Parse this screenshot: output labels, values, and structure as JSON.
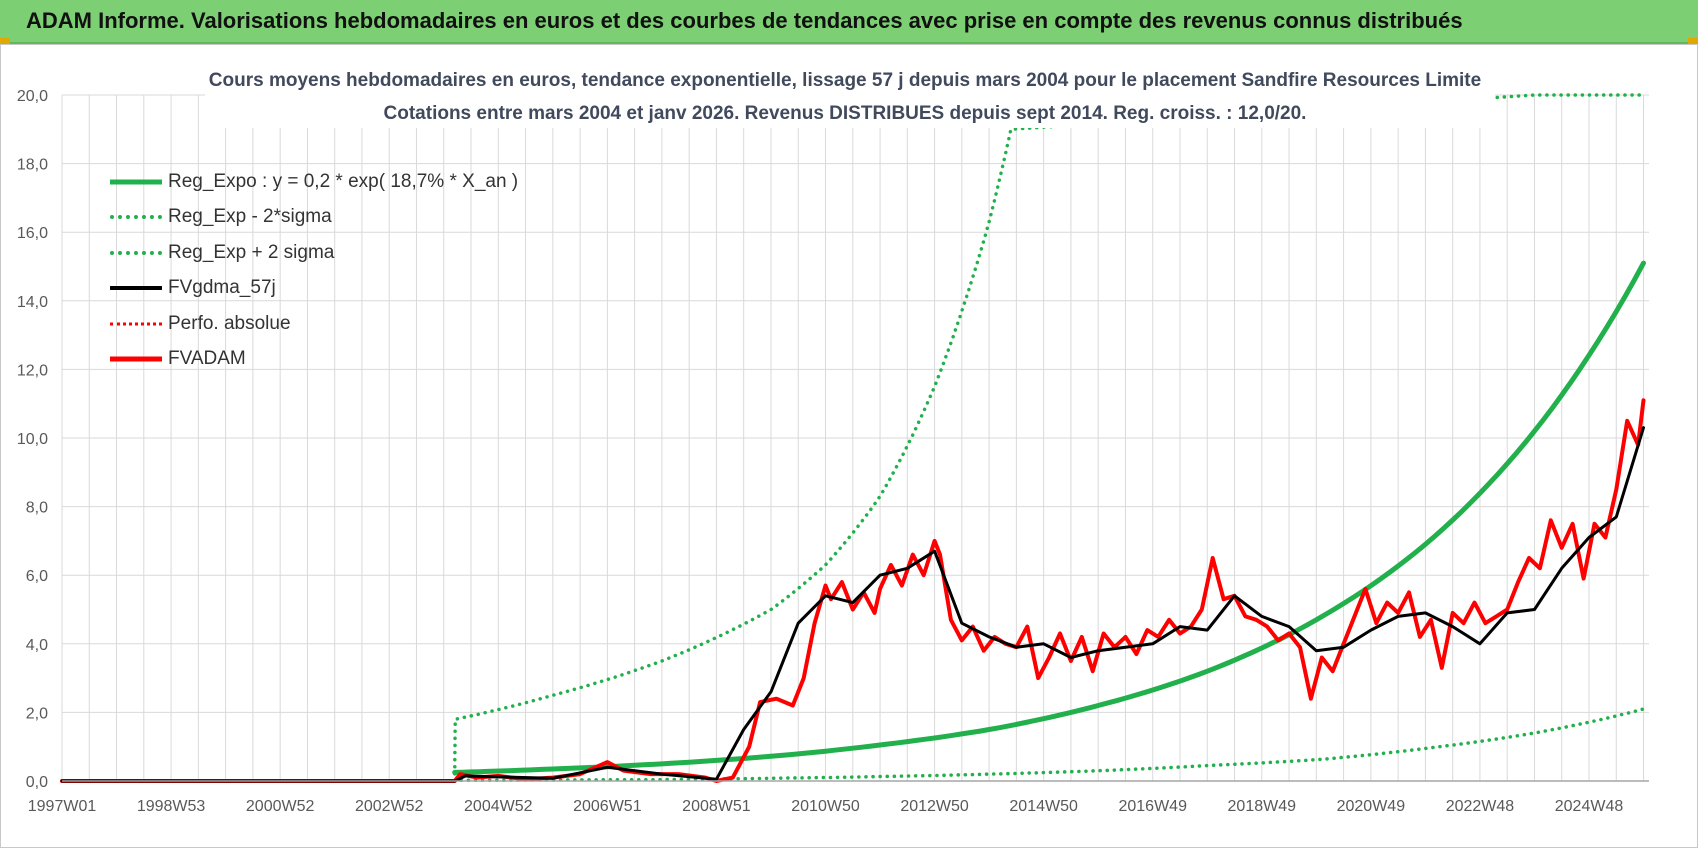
{
  "banner": {
    "title": "ADAM Informe. Valorisations hebdomadaires en euros et des courbes de tendances avec prise en compte des revenus connus distribués"
  },
  "colors": {
    "green": "#22b04c",
    "black": "#000000",
    "red": "#ff0000",
    "grid": "#d9d9d9",
    "banner": "#7ccf72"
  },
  "chart_data": {
    "type": "line",
    "title": "Cours moyens hebdomadaires en euros, tendance exponentielle, lissage 57 j depuis mars 2004 pour le placement Sandfire Resources Limite",
    "subtitle": "Cotations entre mars 2004 et janv 2026. Revenus DISTRIBUES depuis sept 2014. Reg. croiss. : 12,0/20.",
    "xlabel": "",
    "ylabel": "",
    "ylim": [
      0,
      20
    ],
    "xlim": [
      1997.0,
      2026.1
    ],
    "y_ticks": [
      "0,0",
      "2,0",
      "4,0",
      "6,0",
      "8,0",
      "10,0",
      "12,0",
      "14,0",
      "16,0",
      "18,0",
      "20,0"
    ],
    "x_ticks": [
      {
        "label": "1997W01",
        "x": 1997.0
      },
      {
        "label": "1998W53",
        "x": 1999.0
      },
      {
        "label": "2000W52",
        "x": 2001.0
      },
      {
        "label": "2002W52",
        "x": 2003.0
      },
      {
        "label": "2004W52",
        "x": 2005.0
      },
      {
        "label": "2006W51",
        "x": 2007.0
      },
      {
        "label": "2008W51",
        "x": 2009.0
      },
      {
        "label": "2010W50",
        "x": 2011.0
      },
      {
        "label": "2012W50",
        "x": 2013.0
      },
      {
        "label": "2014W50",
        "x": 2015.0
      },
      {
        "label": "2016W49",
        "x": 2017.0
      },
      {
        "label": "2018W49",
        "x": 2019.0
      },
      {
        "label": "2020W49",
        "x": 2021.0
      },
      {
        "label": "2022W48",
        "x": 2023.0
      },
      {
        "label": "2024W48",
        "x": 2025.0
      }
    ],
    "legend": [
      {
        "name": "Reg_Expo : y = 0,2 * exp( 18,7% *  X_an )",
        "color": "#22b04c",
        "style": "solid"
      },
      {
        "name": "Reg_Exp - 2*sigma",
        "color": "#22b04c",
        "style": "dotted"
      },
      {
        "name": "Reg_Exp + 2 sigma",
        "color": "#22b04c",
        "style": "dotted"
      },
      {
        "name": "FVgdma_57j",
        "color": "#000000",
        "style": "solid"
      },
      {
        "name": "Perfo. absolue",
        "color": "#ff0000",
        "style": "dotted"
      },
      {
        "name": "FVADAM",
        "color": "#ff0000",
        "style": "solid"
      }
    ],
    "series": [
      {
        "name": "Reg_Expo",
        "x": [
          2004.2,
          2006.0,
          2008.0,
          2010.0,
          2012.0,
          2014.0,
          2016.0,
          2018.0,
          2020.0,
          2022.0,
          2024.0,
          2026.0
        ],
        "values": [
          0.25,
          0.35,
          0.5,
          0.72,
          1.05,
          1.5,
          2.2,
          3.2,
          4.7,
          6.9,
          10.2,
          15.1
        ]
      },
      {
        "name": "Reg_Exp - 2*sigma",
        "x": [
          2004.2,
          2004.21,
          2006.0,
          2008.0,
          2010.0,
          2012.0,
          2014.0,
          2016.0,
          2018.0,
          2020.0,
          2022.0,
          2024.0,
          2026.0
        ],
        "values": [
          0.0,
          0.02,
          0.03,
          0.04,
          0.08,
          0.13,
          0.2,
          0.3,
          0.45,
          0.62,
          0.95,
          1.4,
          2.1
        ]
      },
      {
        "name": "Reg_Exp + 2 sigma",
        "x": [
          2004.2,
          2004.21,
          2006.0,
          2008.0,
          2010.0,
          2011.0,
          2012.0,
          2013.0,
          2013.5,
          2014.0,
          2014.4,
          2024.0,
          2026.0
        ],
        "values": [
          0.0,
          1.8,
          2.5,
          3.5,
          5.0,
          6.3,
          8.3,
          11.5,
          13.7,
          16.3,
          19.0,
          20.0,
          20.0
        ]
      },
      {
        "name": "FVgdma_57j",
        "x": [
          1997.0,
          2004.2,
          2004.4,
          2005.0,
          2006.0,
          2007.0,
          2008.0,
          2009.0,
          2009.5,
          2010.0,
          2010.5,
          2011.0,
          2011.5,
          2012.0,
          2012.5,
          2013.0,
          2013.5,
          2014.0,
          2014.5,
          2015.0,
          2015.5,
          2016.0,
          2016.5,
          2017.0,
          2017.5,
          2018.0,
          2018.5,
          2019.0,
          2019.5,
          2020.0,
          2020.5,
          2021.0,
          2021.5,
          2022.0,
          2022.5,
          2023.0,
          2023.5,
          2024.0,
          2024.5,
          2025.0,
          2025.5,
          2026.0
        ],
        "values": [
          0.0,
          0.0,
          0.15,
          0.12,
          0.08,
          0.4,
          0.2,
          0.05,
          1.5,
          2.6,
          4.6,
          5.4,
          5.2,
          6.0,
          6.2,
          6.7,
          4.6,
          4.2,
          3.9,
          4.0,
          3.6,
          3.8,
          3.9,
          4.0,
          4.5,
          4.4,
          5.4,
          4.8,
          4.5,
          3.8,
          3.9,
          4.4,
          4.8,
          4.9,
          4.5,
          4.0,
          4.9,
          5.0,
          6.2,
          7.1,
          7.7,
          10.3
        ]
      },
      {
        "name": "FVADAM",
        "x": [
          1997.0,
          2004.2,
          2004.3,
          2004.6,
          2005.0,
          2005.5,
          2006.0,
          2006.5,
          2007.0,
          2007.3,
          2007.8,
          2008.3,
          2008.8,
          2009.0,
          2009.3,
          2009.6,
          2009.8,
          2010.1,
          2010.4,
          2010.6,
          2010.8,
          2011.0,
          2011.1,
          2011.3,
          2011.5,
          2011.7,
          2011.9,
          2012.0,
          2012.2,
          2012.4,
          2012.6,
          2012.8,
          2013.0,
          2013.1,
          2013.3,
          2013.5,
          2013.7,
          2013.9,
          2014.1,
          2014.3,
          2014.5,
          2014.7,
          2014.9,
          2015.1,
          2015.3,
          2015.5,
          2015.7,
          2015.9,
          2016.1,
          2016.3,
          2016.5,
          2016.7,
          2016.9,
          2017.1,
          2017.3,
          2017.5,
          2017.7,
          2017.9,
          2018.1,
          2018.3,
          2018.5,
          2018.7,
          2018.9,
          2019.1,
          2019.3,
          2019.5,
          2019.7,
          2019.9,
          2020.1,
          2020.3,
          2020.5,
          2020.7,
          2020.9,
          2021.1,
          2021.3,
          2021.5,
          2021.7,
          2021.9,
          2022.1,
          2022.3,
          2022.5,
          2022.7,
          2022.9,
          2023.1,
          2023.3,
          2023.5,
          2023.7,
          2023.9,
          2024.1,
          2024.3,
          2024.5,
          2024.7,
          2024.9,
          2025.1,
          2025.3,
          2025.5,
          2025.7,
          2025.9,
          2026.0
        ],
        "values": [
          0.0,
          0.0,
          0.2,
          0.1,
          0.15,
          0.05,
          0.1,
          0.2,
          0.55,
          0.3,
          0.2,
          0.2,
          0.1,
          0.0,
          0.1,
          1.0,
          2.3,
          2.4,
          2.2,
          3.0,
          4.6,
          5.7,
          5.3,
          5.8,
          5.0,
          5.5,
          4.9,
          5.6,
          6.3,
          5.7,
          6.6,
          6.0,
          7.0,
          6.6,
          4.7,
          4.1,
          4.5,
          3.8,
          4.2,
          4.0,
          3.9,
          4.5,
          3.0,
          3.6,
          4.3,
          3.5,
          4.2,
          3.2,
          4.3,
          3.9,
          4.2,
          3.7,
          4.4,
          4.2,
          4.7,
          4.3,
          4.5,
          5.0,
          6.5,
          5.3,
          5.4,
          4.8,
          4.7,
          4.5,
          4.1,
          4.3,
          3.9,
          2.4,
          3.6,
          3.2,
          4.0,
          4.8,
          5.6,
          4.6,
          5.2,
          4.9,
          5.5,
          4.2,
          4.7,
          3.3,
          4.9,
          4.6,
          5.2,
          4.6,
          4.8,
          5.0,
          5.8,
          6.5,
          6.2,
          7.6,
          6.8,
          7.5,
          5.9,
          7.5,
          7.1,
          8.5,
          10.5,
          9.8,
          11.1
        ]
      }
    ]
  }
}
